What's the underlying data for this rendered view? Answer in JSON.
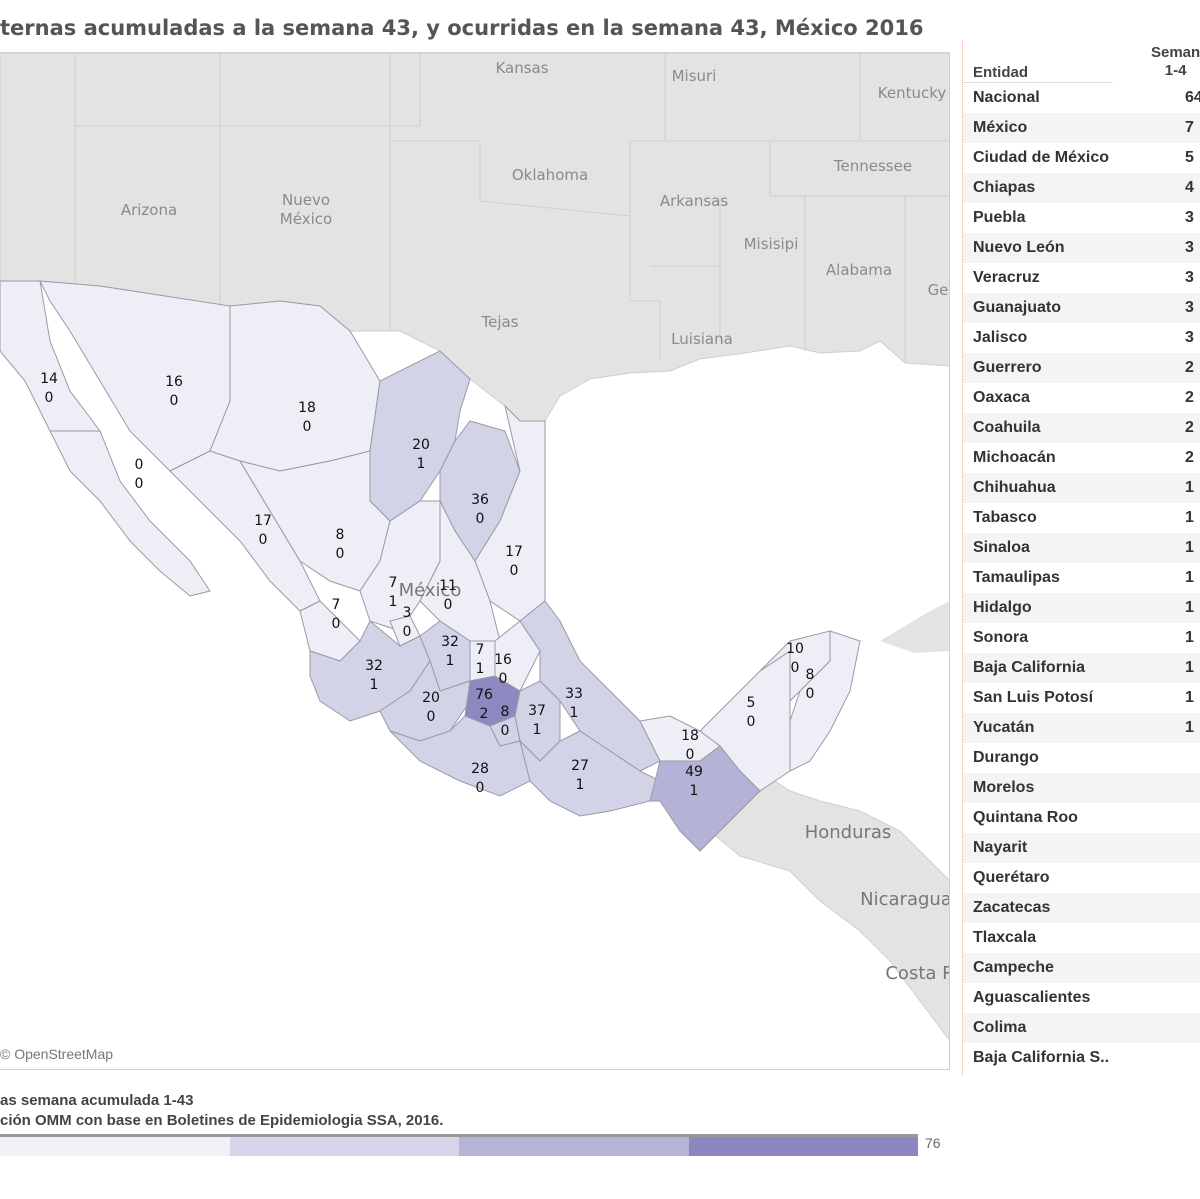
{
  "title": "ternas acumuladas a la semana 43, y ocurridas en la semana 43, México 2016",
  "map": {
    "copyright": "© OpenStreetMap",
    "base_labels": {
      "kansas": "Kansas",
      "misuri": "Misuri",
      "kentucky": "Kentucky",
      "oklahoma": "Oklahoma",
      "tennessee": "Tennessee",
      "arizona": "Arizona",
      "nuevo_mexico_1": "Nuevo",
      "nuevo_mexico_2": "México",
      "arkansas": "Arkansas",
      "misisipi": "Misisipi",
      "alabama": "Alabama",
      "georgia": "Ge",
      "tejas": "Tejas",
      "luisiana": "Luisiana",
      "mexico": "México",
      "honduras": "Honduras",
      "nicaragua": "Nicaragua",
      "costa_rica": "Costa R"
    },
    "state_labels": [
      {
        "state": "Baja California",
        "total": "14",
        "week": "0"
      },
      {
        "state": "Baja California Sur",
        "total": "0",
        "week": "0"
      },
      {
        "state": "Sonora",
        "total": "16",
        "week": "0"
      },
      {
        "state": "Chihuahua",
        "total": "18",
        "week": "0"
      },
      {
        "state": "Coahuila",
        "total": "20",
        "week": "1"
      },
      {
        "state": "Nuevo León",
        "total": "36",
        "week": "0"
      },
      {
        "state": "Tamaulipas",
        "total": "17",
        "week": "0"
      },
      {
        "state": "Sinaloa",
        "total": "17",
        "week": "0"
      },
      {
        "state": "Durango",
        "total": "8",
        "week": "0"
      },
      {
        "state": "Zacatecas",
        "total": "7",
        "week": "1"
      },
      {
        "state": "San Luis Potosí",
        "total": "11",
        "week": "0"
      },
      {
        "state": "Aguascalientes",
        "total": "3",
        "week": "0"
      },
      {
        "state": "Nayarit",
        "total": "7",
        "week": "0"
      },
      {
        "state": "Guanajuato",
        "total": "32",
        "week": "1"
      },
      {
        "state": "Querétaro",
        "total": "7",
        "week": "1"
      },
      {
        "state": "Hidalgo",
        "total": "16",
        "week": "0"
      },
      {
        "state": "Jalisco",
        "total": "32",
        "week": "1"
      },
      {
        "state": "Michoacán",
        "total": "20",
        "week": "0"
      },
      {
        "state": "México",
        "total": "76",
        "week": "2"
      },
      {
        "state": "Morelos",
        "total": "8",
        "week": "0"
      },
      {
        "state": "Puebla",
        "total": "37",
        "week": "1"
      },
      {
        "state": "Veracruz",
        "total": "33",
        "week": "1"
      },
      {
        "state": "Guerrero",
        "total": "28",
        "week": "0"
      },
      {
        "state": "Oaxaca",
        "total": "27",
        "week": "1"
      },
      {
        "state": "Tabasco",
        "total": "18",
        "week": "0"
      },
      {
        "state": "Chiapas",
        "total": "49",
        "week": "1"
      },
      {
        "state": "Campeche",
        "total": "5",
        "week": "0"
      },
      {
        "state": "Yucatán",
        "total": "10",
        "week": "0"
      },
      {
        "state": "Quintana Roo",
        "total": "8",
        "week": "0"
      }
    ],
    "colors": {
      "level1": "#eeeef6",
      "level2": "#d3d3e8",
      "level3": "#b4b2d6",
      "level4": "#8e88c0"
    }
  },
  "legend": {
    "title": "as semana acumulada 1-43",
    "source": "ción OMM con base en Boletines de Epidemiologia SSA, 2016.",
    "max": "76",
    "colors": [
      "#f1f1f7",
      "#d6d5e9",
      "#b5b3d7",
      "#8c86c1"
    ]
  },
  "table": {
    "header_entidad": "Entidad",
    "header_semana_1": "Seman",
    "header_semana_2": "1-4",
    "rows": [
      {
        "name": "Nacional",
        "value": "64"
      },
      {
        "name": "México",
        "value": "7"
      },
      {
        "name": "Ciudad de México",
        "value": "5"
      },
      {
        "name": "Chiapas",
        "value": "4"
      },
      {
        "name": "Puebla",
        "value": "3"
      },
      {
        "name": "Nuevo León",
        "value": "3"
      },
      {
        "name": "Veracruz",
        "value": "3"
      },
      {
        "name": "Guanajuato",
        "value": "3"
      },
      {
        "name": "Jalisco",
        "value": "3"
      },
      {
        "name": "Guerrero",
        "value": "2"
      },
      {
        "name": "Oaxaca",
        "value": "2"
      },
      {
        "name": "Coahuila",
        "value": "2"
      },
      {
        "name": "Michoacán",
        "value": "2"
      },
      {
        "name": "Chihuahua",
        "value": "1"
      },
      {
        "name": "Tabasco",
        "value": "1"
      },
      {
        "name": "Sinaloa",
        "value": "1"
      },
      {
        "name": "Tamaulipas",
        "value": "1"
      },
      {
        "name": "Hidalgo",
        "value": "1"
      },
      {
        "name": "Sonora",
        "value": "1"
      },
      {
        "name": "Baja California",
        "value": "1"
      },
      {
        "name": "San Luis Potosí",
        "value": "1"
      },
      {
        "name": "Yucatán",
        "value": "1"
      },
      {
        "name": "Durango",
        "value": ""
      },
      {
        "name": "Morelos",
        "value": ""
      },
      {
        "name": "Quintana Roo",
        "value": ""
      },
      {
        "name": "Nayarit",
        "value": ""
      },
      {
        "name": "Querétaro",
        "value": ""
      },
      {
        "name": "Zacatecas",
        "value": ""
      },
      {
        "name": "Tlaxcala",
        "value": ""
      },
      {
        "name": "Campeche",
        "value": ""
      },
      {
        "name": "Aguascalientes",
        "value": ""
      },
      {
        "name": "Colima",
        "value": ""
      },
      {
        "name": "Baja California S..",
        "value": ""
      }
    ]
  }
}
